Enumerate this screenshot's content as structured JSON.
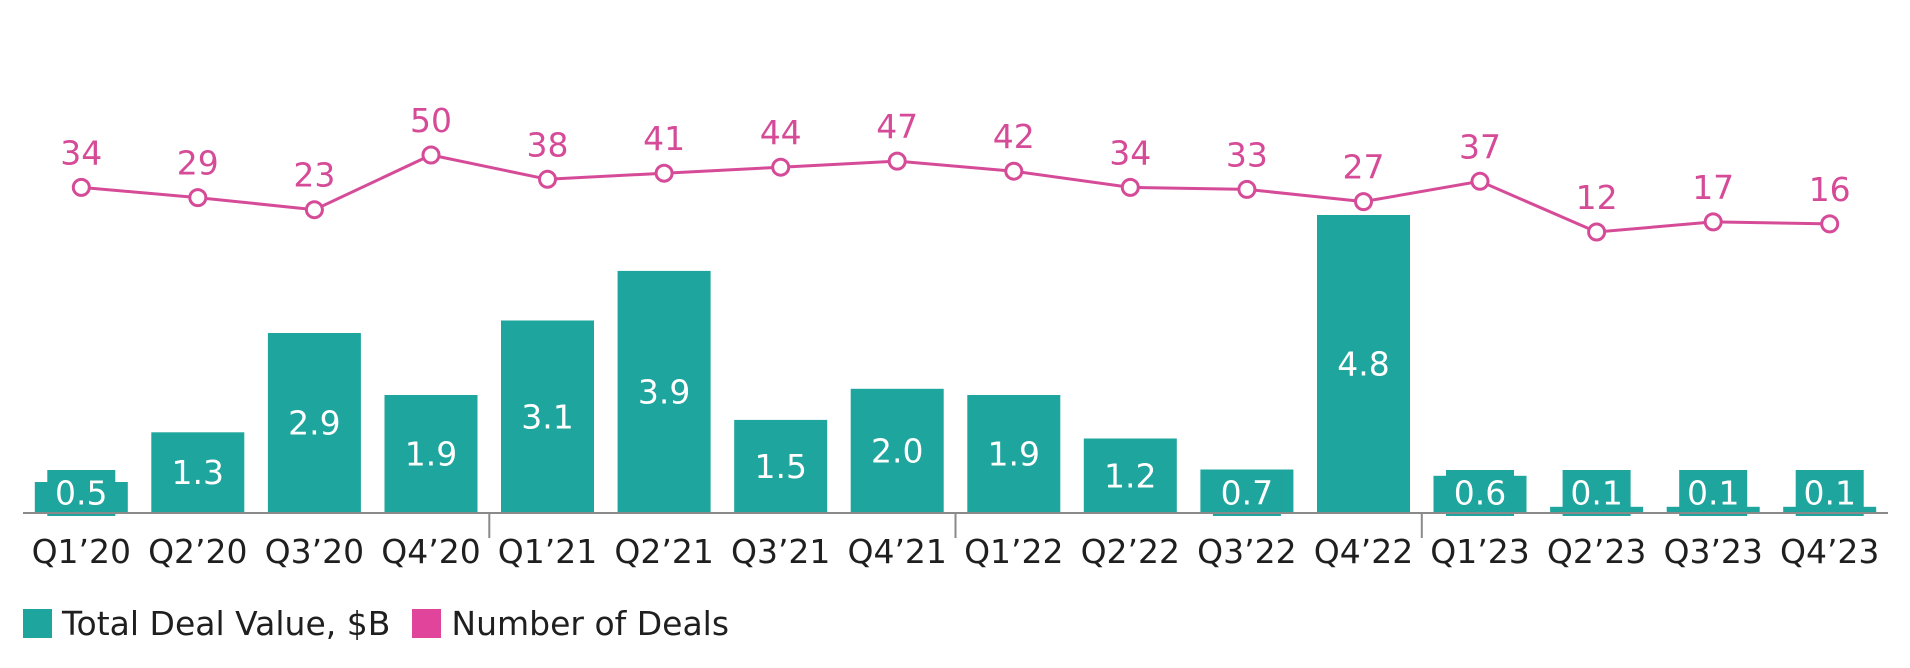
{
  "chart_data": {
    "type": "bar",
    "categories": [
      "Q1’20",
      "Q2’20",
      "Q3’20",
      "Q4’20",
      "Q1’21",
      "Q2’21",
      "Q3’21",
      "Q4’21",
      "Q1’22",
      "Q2’22",
      "Q3’22",
      "Q4’22",
      "Q1’23",
      "Q2’23",
      "Q3’23",
      "Q4’23"
    ],
    "series": [
      {
        "name": "Total Deal Value, $B",
        "type": "bar",
        "color": "#1ea59d",
        "values": [
          0.5,
          1.3,
          2.9,
          1.9,
          3.1,
          3.9,
          1.5,
          2.0,
          1.9,
          1.2,
          0.7,
          4.8,
          0.6,
          0.1,
          0.1,
          0.1
        ],
        "labels": [
          "0.5",
          "1.3",
          "2.9",
          "1.9",
          "3.1",
          "3.9",
          "1.5",
          "2.0",
          "1.9",
          "1.2",
          "0.7",
          "4.8",
          "0.6",
          "0.1",
          "0.1",
          "0.1"
        ]
      },
      {
        "name": "Number of Deals",
        "type": "line",
        "color": "#d64b98",
        "values": [
          34,
          29,
          23,
          50,
          38,
          41,
          44,
          47,
          42,
          34,
          33,
          27,
          37,
          12,
          17,
          16
        ]
      }
    ],
    "title": "",
    "xlabel": "",
    "ylabel": "",
    "grid": false,
    "legend_position": "bottom-left"
  },
  "legend": [
    {
      "label": "Total Deal Value, $B",
      "color": "#1ea59d"
    },
    {
      "label": "Number of Deals",
      "color": "#e0449b"
    }
  ]
}
